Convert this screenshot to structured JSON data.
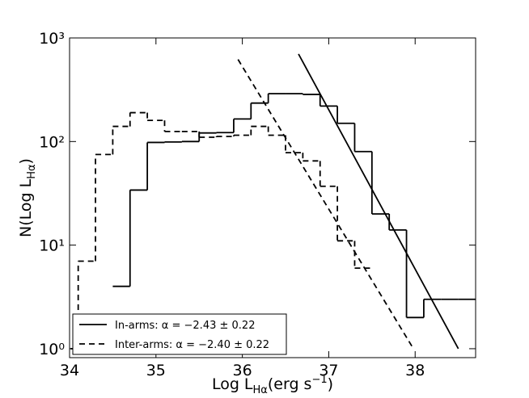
{
  "chart_data": {
    "type": "histogram",
    "xlabel": [
      "Log L",
      "Hα",
      "(erg s",
      "−1",
      ")"
    ],
    "ylabel": [
      "N(Log L",
      "Hα",
      ")"
    ],
    "xlim": [
      34,
      38.7
    ],
    "ylim": [
      0.82,
      1000
    ],
    "log_y": true,
    "xticks": [
      34,
      35,
      36,
      37,
      38
    ],
    "yticks": [
      {
        "value": 1,
        "label": "10⁰"
      },
      {
        "value": 10,
        "label": "10¹"
      },
      {
        "value": 100,
        "label": "10²"
      },
      {
        "value": 1000,
        "label": "10³"
      }
    ],
    "legend": "lower left",
    "series": [
      {
        "name": "In-arms: α = −2.43 ± 0.22",
        "color": "#000000",
        "dashed": false,
        "bins": [
          34.5,
          34.7,
          34.9,
          35.1,
          35.3,
          35.5,
          35.7,
          35.9,
          36.1,
          36.3,
          36.5,
          36.7,
          36.9,
          37.1,
          37.3,
          37.5,
          37.7,
          37.9,
          38.1,
          38.3,
          38.5,
          38.7
        ],
        "values": [
          4,
          34,
          98,
          99,
          100,
          121,
          122,
          165,
          235,
          290,
          290,
          285,
          220,
          150,
          80,
          20,
          14,
          2,
          3,
          3,
          3
        ],
        "fit": {
          "x": [
            36.65,
            38.5
          ],
          "y": [
            700,
            1
          ]
        }
      },
      {
        "name": "Inter-arms: α = −2.40 ± 0.22",
        "color": "#000000",
        "dashed": true,
        "bins": [
          33.9,
          34.1,
          34.3,
          34.5,
          34.7,
          34.9,
          35.1,
          35.3,
          35.5,
          35.7,
          35.9,
          36.1,
          36.3,
          36.5,
          36.7,
          36.9,
          37.1,
          37.3,
          37.5
        ],
        "values": [
          1,
          7,
          75,
          140,
          190,
          160,
          125,
          125,
          110,
          112,
          115,
          140,
          115,
          78,
          65,
          37,
          11,
          6
        ],
        "fit": {
          "x": [
            35.95,
            37.98
          ],
          "y": [
            620,
            1
          ]
        }
      }
    ]
  }
}
